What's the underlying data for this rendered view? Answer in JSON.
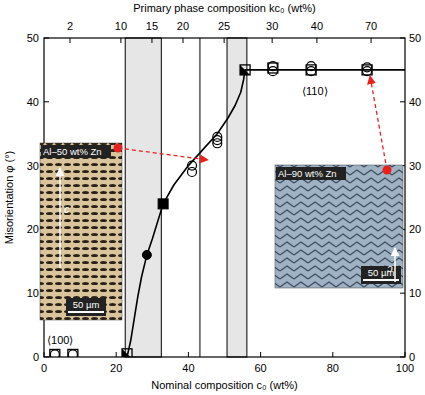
{
  "chart_data": {
    "type": "scatter",
    "xlabel": "Nominal composition c₀ (wt%)",
    "ylabel": "Misorientation φ (°)",
    "x2label": "Primary phase composition kc₀ (wt%)",
    "xlim": [
      0,
      100
    ],
    "xticks": [
      0,
      20,
      40,
      60,
      80,
      100
    ],
    "ylim": [
      0,
      50
    ],
    "yticks": [
      0,
      10,
      20,
      30,
      40,
      50
    ],
    "y2lim": [
      0,
      50
    ],
    "y2ticks": [
      0,
      10,
      20,
      30,
      40,
      50
    ],
    "x2ticks": [
      {
        "value": 7.2,
        "label": "2"
      },
      {
        "value": 21.3,
        "label": "10"
      },
      {
        "value": 29.9,
        "label": "15"
      },
      {
        "value": 38.5,
        "label": "20"
      },
      {
        "value": 49.9,
        "label": "25"
      },
      {
        "value": 63.2,
        "label": "30"
      },
      {
        "value": 75.6,
        "label": "40"
      },
      {
        "value": 90.6,
        "label": "70"
      }
    ],
    "series": [
      {
        "marker": "square-open",
        "color": "#000000",
        "x": [
          3,
          8,
          63.4,
          74,
          89.5
        ],
        "values": [
          0.4,
          0.4,
          45.3,
          45,
          45
        ]
      },
      {
        "marker": "circle-open",
        "color": "#000000",
        "x": [
          3,
          8,
          41,
          41,
          48,
          48,
          48,
          63.4,
          63.4,
          74,
          74,
          89.5,
          89.5
        ],
        "values": [
          0.4,
          0.4,
          29,
          30,
          33.5,
          34,
          34.5,
          45.6,
          44.8,
          45.6,
          44.8,
          45.4,
          44.8
        ]
      },
      {
        "marker": "circle",
        "color": "#000000",
        "x": [
          28.5
        ],
        "values": [
          16
        ]
      },
      {
        "marker": "square",
        "color": "#000000",
        "x": [
          33
        ],
        "values": [
          24
        ]
      },
      {
        "marker": "square-half",
        "color": "#000000",
        "x": [
          23,
          55.7
        ],
        "values": [
          0.5,
          45
        ]
      }
    ],
    "fit_line": {
      "color": "#000000",
      "x": [
        23,
        24,
        25,
        26,
        27,
        28.5,
        30,
        33,
        36,
        40,
        44,
        48,
        51,
        53,
        54.5,
        55.3,
        55.7,
        100
      ],
      "values": [
        0,
        2.5,
        6,
        9.5,
        12.5,
        16,
        18.5,
        24,
        27,
        30,
        32.5,
        35,
        37.5,
        39.5,
        41.5,
        43.5,
        45,
        45
      ]
    },
    "bands": [
      [
        22.5,
        32.5
      ],
      [
        50.7,
        56.2
      ]
    ],
    "vlines": [
      43.2
    ],
    "annotations": [
      {
        "text": "⟨100⟩",
        "x": 4.5,
        "y": 2
      },
      {
        "text": "⟨110⟩",
        "x": 75,
        "y": 41
      }
    ],
    "insets": [
      {
        "label": "Al–50 wt% Zn",
        "scale": "50 µm",
        "axis": "c"
      },
      {
        "label": "Al–90 wt% Zn",
        "scale": "50 µm",
        "axis": "c"
      }
    ]
  }
}
